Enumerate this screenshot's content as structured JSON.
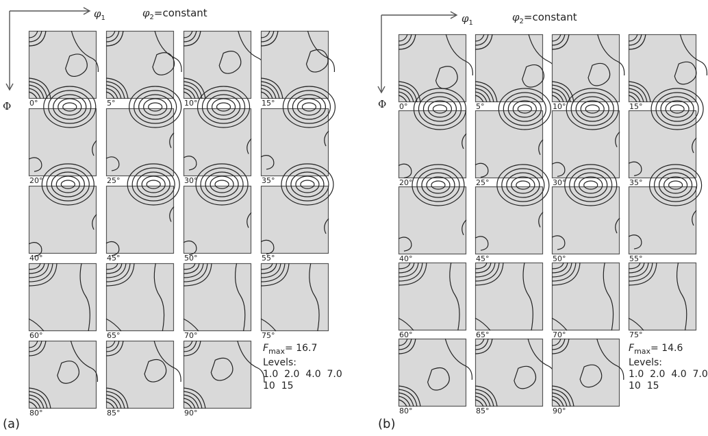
{
  "colors": {
    "tile_fill": "#d9d9d9",
    "tile_border": "#555555",
    "contour": "#222222",
    "axis": "#555555"
  },
  "panels": [
    {
      "tag": "(a)",
      "axis": {
        "phi1": "φ",
        "phi1_sub": "1",
        "phi2_label": "φ",
        "phi2_sub": "2",
        "phi2_rest": "=constant",
        "Phi": "Φ"
      },
      "tiles": [
        "0°",
        "5°",
        "10°",
        "15°",
        "20°",
        "25°",
        "30°",
        "35°",
        "40°",
        "45°",
        "50°",
        "55°",
        "60°",
        "65°",
        "70°",
        "75°",
        "80°",
        "85°",
        "90°"
      ],
      "legend": {
        "fmax_label": "F",
        "fmax_sub": "max",
        "fmax_value": "= 16.7",
        "levels_title": "Levels:",
        "levels_line1": "1.0  2.0  4.0  7.0",
        "levels_line2": "10  15"
      }
    },
    {
      "tag": "(b)",
      "axis": {
        "phi1": "φ",
        "phi1_sub": "1",
        "phi2_label": "φ",
        "phi2_sub": "2",
        "phi2_rest": "=constant",
        "Phi": "Φ"
      },
      "tiles": [
        "0°",
        "5°",
        "10°",
        "15°",
        "20°",
        "25°",
        "30°",
        "35°",
        "40°",
        "45°",
        "50°",
        "55°",
        "60°",
        "65°",
        "70°",
        "75°",
        "80°",
        "85°",
        "90°"
      ],
      "legend": {
        "fmax_label": "F",
        "fmax_sub": "max",
        "fmax_value": "= 14.6",
        "levels_title": "Levels:",
        "levels_line1": "1.0  2.0  4.0  7.0",
        "levels_line2": "10  15"
      }
    }
  ]
}
